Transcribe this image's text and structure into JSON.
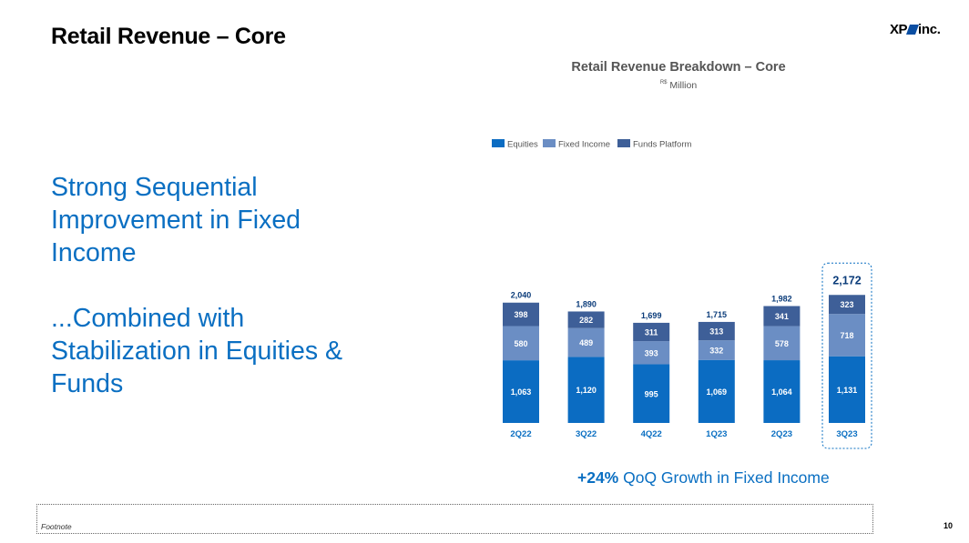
{
  "header": {
    "title": "Retail Revenue – Core",
    "logo_text_left": "XP",
    "logo_text_right": "inc."
  },
  "headline": {
    "lines": [
      "Strong Sequential",
      "Improvement in Fixed",
      "Income",
      "",
      "...Combined with",
      "Stabilization in Equities &",
      "Funds"
    ]
  },
  "growth_callout": {
    "value": "+24%",
    "text": " QoQ Growth in Fixed Income"
  },
  "footer": {
    "footnote": "Footnote",
    "page_number": "10"
  },
  "colors": {
    "accent": "#0a6fc2",
    "equities": "#0b6cc2",
    "fixed_income": "#6b8ec4",
    "funds_platform": "#3e5f98",
    "category_label": "#0a6fc2"
  },
  "chart_data": {
    "type": "bar",
    "stacked": true,
    "title": "Retail Revenue Breakdown – Core",
    "subtitle_prefix": "R$",
    "subtitle": "Million",
    "legend_position": "top-left",
    "categories": [
      "2Q22",
      "3Q22",
      "4Q22",
      "1Q23",
      "2Q23",
      "3Q23"
    ],
    "series": [
      {
        "name": "Equities",
        "values": [
          1063,
          1120,
          995,
          1069,
          1064,
          1131
        ],
        "labels": [
          "1,063",
          "1,120",
          "995",
          "1,069",
          "1,064",
          "1,131"
        ]
      },
      {
        "name": "Fixed Income",
        "values": [
          580,
          489,
          393,
          332,
          578,
          718
        ],
        "labels": [
          "580",
          "489",
          "393",
          "332",
          "578",
          "718"
        ]
      },
      {
        "name": "Funds Platform",
        "values": [
          398,
          282,
          311,
          313,
          341,
          323
        ],
        "labels": [
          "398",
          "282",
          "311",
          "313",
          "341",
          "323"
        ]
      }
    ],
    "totals": [
      2040,
      1890,
      1699,
      1715,
      1982,
      2172
    ],
    "total_labels": [
      "2,040",
      "1,890",
      "1,699",
      "1,715",
      "1,982",
      "2,172"
    ],
    "highlighted_category": "3Q23",
    "grid": false
  }
}
